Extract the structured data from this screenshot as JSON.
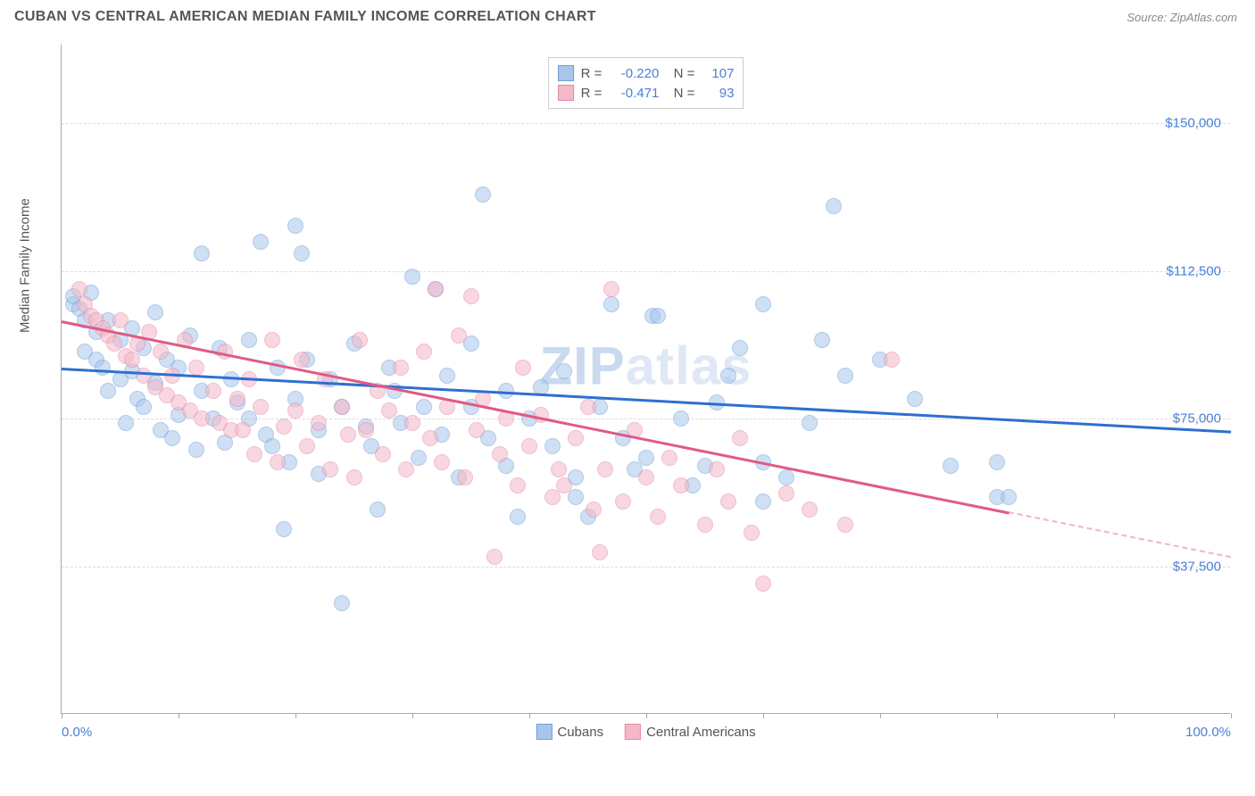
{
  "title": "CUBAN VS CENTRAL AMERICAN MEDIAN FAMILY INCOME CORRELATION CHART",
  "source": "Source: ZipAtlas.com",
  "y_label": "Median Family Income",
  "watermark_first": "ZIP",
  "watermark_rest": "atlas",
  "chart": {
    "type": "scatter",
    "xlim": [
      0,
      100
    ],
    "ylim": [
      0,
      170000
    ],
    "y_ticks": [
      {
        "value": 37500,
        "label": "$37,500"
      },
      {
        "value": 75000,
        "label": "$75,000"
      },
      {
        "value": 112500,
        "label": "$112,500"
      },
      {
        "value": 150000,
        "label": "$150,000"
      }
    ],
    "x_ticks": [
      0,
      10,
      20,
      30,
      40,
      50,
      60,
      70,
      80,
      90,
      100
    ],
    "x_labels": [
      {
        "value": 0,
        "label": "0.0%"
      },
      {
        "value": 100,
        "label": "100.0%"
      }
    ],
    "grid_color": "#dddddd",
    "axis_color": "#aaaaaa",
    "background_color": "#ffffff",
    "point_radius": 9,
    "point_opacity": 0.55,
    "series": [
      {
        "name": "Cubans",
        "color_fill": "#a8c5ec",
        "color_border": "#6f9fd8",
        "trend_color": "#2e6fd0",
        "R": "-0.220",
        "N": "107",
        "trend": {
          "x1": 0,
          "y1": 88000,
          "x2": 100,
          "y2": 72000,
          "solid_to_x": 100
        },
        "points": [
          [
            1,
            104000
          ],
          [
            1,
            106000
          ],
          [
            1.5,
            103000
          ],
          [
            2,
            100000
          ],
          [
            2,
            92000
          ],
          [
            2.5,
            107000
          ],
          [
            3,
            97000
          ],
          [
            3,
            90000
          ],
          [
            3.5,
            88000
          ],
          [
            4,
            100000
          ],
          [
            4,
            82000
          ],
          [
            5,
            95000
          ],
          [
            5,
            85000
          ],
          [
            5.5,
            74000
          ],
          [
            6,
            98000
          ],
          [
            6,
            87000
          ],
          [
            6.5,
            80000
          ],
          [
            7,
            93000
          ],
          [
            7,
            78000
          ],
          [
            8,
            102000
          ],
          [
            8,
            84000
          ],
          [
            8.5,
            72000
          ],
          [
            9,
            90000
          ],
          [
            9.5,
            70000
          ],
          [
            10,
            88000
          ],
          [
            10,
            76000
          ],
          [
            11,
            96000
          ],
          [
            11.5,
            67000
          ],
          [
            12,
            117000
          ],
          [
            12,
            82000
          ],
          [
            13,
            75000
          ],
          [
            13.5,
            93000
          ],
          [
            14,
            69000
          ],
          [
            14.5,
            85000
          ],
          [
            15,
            79000
          ],
          [
            16,
            75000
          ],
          [
            16,
            95000
          ],
          [
            17,
            120000
          ],
          [
            17.5,
            71000
          ],
          [
            18,
            68000
          ],
          [
            18.5,
            88000
          ],
          [
            19,
            47000
          ],
          [
            19.5,
            64000
          ],
          [
            20,
            124000
          ],
          [
            20,
            80000
          ],
          [
            20.5,
            117000
          ],
          [
            21,
            90000
          ],
          [
            22,
            72000
          ],
          [
            22,
            61000
          ],
          [
            23,
            85000
          ],
          [
            24,
            28000
          ],
          [
            24,
            78000
          ],
          [
            25,
            94000
          ],
          [
            26,
            73000
          ],
          [
            26.5,
            68000
          ],
          [
            27,
            52000
          ],
          [
            28,
            88000
          ],
          [
            28.5,
            82000
          ],
          [
            29,
            74000
          ],
          [
            30,
            111000
          ],
          [
            30.5,
            65000
          ],
          [
            31,
            78000
          ],
          [
            32,
            108000
          ],
          [
            32.5,
            71000
          ],
          [
            33,
            86000
          ],
          [
            34,
            60000
          ],
          [
            35,
            94000
          ],
          [
            35,
            78000
          ],
          [
            36,
            132000
          ],
          [
            36.5,
            70000
          ],
          [
            38,
            82000
          ],
          [
            38,
            63000
          ],
          [
            39,
            50000
          ],
          [
            40,
            75000
          ],
          [
            41,
            83000
          ],
          [
            42,
            68000
          ],
          [
            43,
            87000
          ],
          [
            44,
            60000
          ],
          [
            44,
            55000
          ],
          [
            45,
            50000
          ],
          [
            46,
            78000
          ],
          [
            47,
            104000
          ],
          [
            48,
            70000
          ],
          [
            49,
            62000
          ],
          [
            50,
            65000
          ],
          [
            50.5,
            101000
          ],
          [
            51,
            101000
          ],
          [
            53,
            75000
          ],
          [
            54,
            58000
          ],
          [
            55,
            63000
          ],
          [
            56,
            79000
          ],
          [
            57,
            86000
          ],
          [
            58,
            93000
          ],
          [
            60,
            54000
          ],
          [
            60,
            64000
          ],
          [
            60,
            104000
          ],
          [
            62,
            60000
          ],
          [
            64,
            74000
          ],
          [
            65,
            95000
          ],
          [
            66,
            129000
          ],
          [
            67,
            86000
          ],
          [
            70,
            90000
          ],
          [
            73,
            80000
          ],
          [
            76,
            63000
          ],
          [
            80,
            55000
          ],
          [
            80,
            64000
          ],
          [
            81,
            55000
          ]
        ]
      },
      {
        "name": "Central Americans",
        "color_fill": "#f4b8c8",
        "color_border": "#e589a5",
        "trend_color": "#e05a85",
        "R": "-0.471",
        "N": "93",
        "trend": {
          "x1": 0,
          "y1": 100000,
          "x2": 100,
          "y2": 40000,
          "solid_to_x": 81
        },
        "points": [
          [
            1.5,
            108000
          ],
          [
            2,
            104000
          ],
          [
            2.5,
            101000
          ],
          [
            3,
            100000
          ],
          [
            3.5,
            98000
          ],
          [
            4,
            96000
          ],
          [
            4.5,
            94000
          ],
          [
            5,
            100000
          ],
          [
            5.5,
            91000
          ],
          [
            6,
            90000
          ],
          [
            6.5,
            94000
          ],
          [
            7,
            86000
          ],
          [
            7.5,
            97000
          ],
          [
            8,
            83000
          ],
          [
            8.5,
            92000
          ],
          [
            9,
            81000
          ],
          [
            9.5,
            86000
          ],
          [
            10,
            79000
          ],
          [
            10.5,
            95000
          ],
          [
            11,
            77000
          ],
          [
            11.5,
            88000
          ],
          [
            12,
            75000
          ],
          [
            13,
            82000
          ],
          [
            13.5,
            74000
          ],
          [
            14,
            92000
          ],
          [
            14.5,
            72000
          ],
          [
            15,
            80000
          ],
          [
            15.5,
            72000
          ],
          [
            16,
            85000
          ],
          [
            16.5,
            66000
          ],
          [
            17,
            78000
          ],
          [
            18,
            95000
          ],
          [
            18.5,
            64000
          ],
          [
            19,
            73000
          ],
          [
            20,
            77000
          ],
          [
            20.5,
            90000
          ],
          [
            21,
            68000
          ],
          [
            22,
            74000
          ],
          [
            22.5,
            85000
          ],
          [
            23,
            62000
          ],
          [
            24,
            78000
          ],
          [
            24.5,
            71000
          ],
          [
            25,
            60000
          ],
          [
            25.5,
            95000
          ],
          [
            26,
            72000
          ],
          [
            27,
            82000
          ],
          [
            27.5,
            66000
          ],
          [
            28,
            77000
          ],
          [
            29,
            88000
          ],
          [
            29.5,
            62000
          ],
          [
            30,
            74000
          ],
          [
            31,
            92000
          ],
          [
            31.5,
            70000
          ],
          [
            32,
            108000
          ],
          [
            32.5,
            64000
          ],
          [
            33,
            78000
          ],
          [
            34,
            96000
          ],
          [
            34.5,
            60000
          ],
          [
            35,
            106000
          ],
          [
            35.5,
            72000
          ],
          [
            36,
            80000
          ],
          [
            37,
            40000
          ],
          [
            37.5,
            66000
          ],
          [
            38,
            75000
          ],
          [
            39,
            58000
          ],
          [
            39.5,
            88000
          ],
          [
            40,
            68000
          ],
          [
            41,
            76000
          ],
          [
            42,
            55000
          ],
          [
            42.5,
            62000
          ],
          [
            43,
            58000
          ],
          [
            44,
            70000
          ],
          [
            45,
            78000
          ],
          [
            45.5,
            52000
          ],
          [
            46,
            41000
          ],
          [
            46.5,
            62000
          ],
          [
            47,
            108000
          ],
          [
            48,
            54000
          ],
          [
            49,
            72000
          ],
          [
            50,
            60000
          ],
          [
            51,
            50000
          ],
          [
            52,
            65000
          ],
          [
            53,
            58000
          ],
          [
            55,
            48000
          ],
          [
            56,
            62000
          ],
          [
            57,
            54000
          ],
          [
            58,
            70000
          ],
          [
            59,
            46000
          ],
          [
            60,
            33000
          ],
          [
            62,
            56000
          ],
          [
            64,
            52000
          ],
          [
            67,
            48000
          ],
          [
            71,
            90000
          ]
        ]
      }
    ],
    "bottom_legend": [
      {
        "label": "Cubans",
        "fill": "#a8c5ec",
        "border": "#6f9fd8"
      },
      {
        "label": "Central Americans",
        "fill": "#f4b8c8",
        "border": "#e589a5"
      }
    ]
  }
}
